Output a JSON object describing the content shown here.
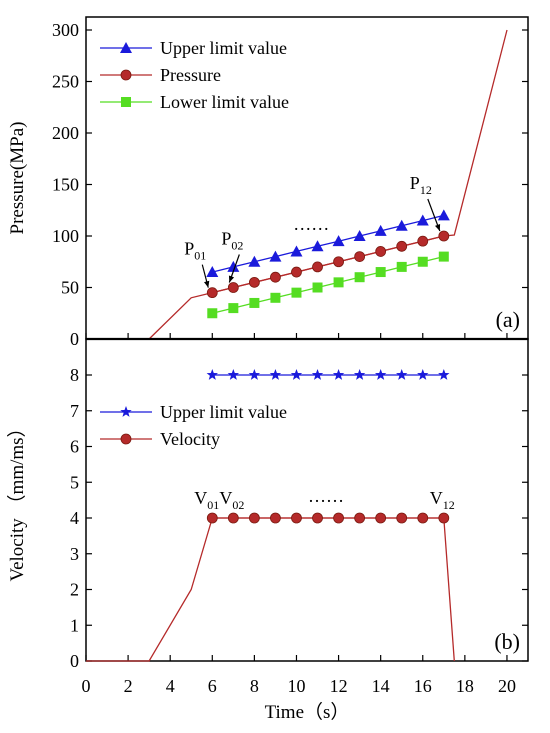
{
  "chart_data": [
    {
      "panel_label": "(a)",
      "type": "line",
      "xlabel": "Time（s）",
      "ylabel": "Pressure(MPa)",
      "xlim": [
        0,
        21
      ],
      "ylim": [
        0,
        310
      ],
      "xticks": [
        0,
        2,
        4,
        6,
        8,
        10,
        12,
        14,
        16,
        18,
        20
      ],
      "yticks": [
        0,
        50,
        100,
        150,
        200,
        250,
        300
      ],
      "legend_position": "top-left",
      "series": [
        {
          "name": "Upper limit value",
          "marker": "triangle",
          "color": "#1a1adb",
          "x": [
            6,
            7,
            8,
            9,
            10,
            11,
            12,
            13,
            14,
            15,
            16,
            17
          ],
          "y": [
            65,
            70,
            75,
            80,
            85,
            90,
            95,
            100,
            105,
            110,
            115,
            120
          ]
        },
        {
          "name": "Pressure",
          "marker": "circle",
          "color": "#b52a2a",
          "x": [
            6,
            7,
            8,
            9,
            10,
            11,
            12,
            13,
            14,
            15,
            16,
            17
          ],
          "y": [
            45,
            50,
            55,
            60,
            65,
            70,
            75,
            80,
            85,
            90,
            95,
            100
          ],
          "profile": {
            "x": [
              3,
              5,
              6,
              17,
              17.5,
              20
            ],
            "y": [
              0,
              40,
              45,
              100,
              101,
              300
            ]
          }
        },
        {
          "name": "Lower limit value",
          "marker": "square",
          "color": "#55dd22",
          "x": [
            6,
            7,
            8,
            9,
            10,
            11,
            12,
            13,
            14,
            15,
            16,
            17
          ],
          "y": [
            25,
            30,
            35,
            40,
            45,
            50,
            55,
            60,
            65,
            70,
            75,
            80
          ]
        }
      ],
      "annotations": [
        {
          "text": "P",
          "sub": "01",
          "x": 6,
          "y": 45
        },
        {
          "text": "P",
          "sub": "02",
          "x": 7,
          "y": 50
        },
        {
          "text": "P",
          "sub": "12",
          "x": 17,
          "y": 100
        },
        {
          "text": "……",
          "x": 10.7,
          "y": 103
        }
      ]
    },
    {
      "panel_label": "(b)",
      "type": "line",
      "xlabel": "Time（s）",
      "ylabel": "Velocity （mm/ms）",
      "xlim": [
        0,
        21
      ],
      "ylim": [
        0,
        9
      ],
      "xticks": [
        0,
        2,
        4,
        6,
        8,
        10,
        12,
        14,
        16,
        18,
        20
      ],
      "yticks": [
        0,
        1,
        2,
        3,
        4,
        5,
        6,
        7,
        8
      ],
      "legend_position": "middle-left",
      "series": [
        {
          "name": "Upper limit value",
          "marker": "star",
          "color": "#1a1adb",
          "x": [
            6,
            7,
            8,
            9,
            10,
            11,
            12,
            13,
            14,
            15,
            16,
            17
          ],
          "y": [
            8,
            8,
            8,
            8,
            8,
            8,
            8,
            8,
            8,
            8,
            8,
            8
          ]
        },
        {
          "name": "Velocity",
          "marker": "circle",
          "color": "#b52a2a",
          "x": [
            6,
            7,
            8,
            9,
            10,
            11,
            12,
            13,
            14,
            15,
            16,
            17
          ],
          "y": [
            4,
            4,
            4,
            4,
            4,
            4,
            4,
            4,
            4,
            4,
            4,
            4
          ],
          "profile": {
            "x": [
              0,
              3,
              5,
              6,
              17,
              17.5
            ],
            "y": [
              0,
              0,
              2,
              4,
              4,
              0
            ]
          }
        }
      ],
      "annotations": [
        {
          "text": "V",
          "sub": "01",
          "x": 6,
          "y": 4
        },
        {
          "text": "V",
          "sub": "02",
          "x": 7,
          "y": 4
        },
        {
          "text": "V",
          "sub": "12",
          "x": 17,
          "y": 4
        },
        {
          "text": "……",
          "x": 11.4,
          "y": 4
        }
      ]
    }
  ]
}
